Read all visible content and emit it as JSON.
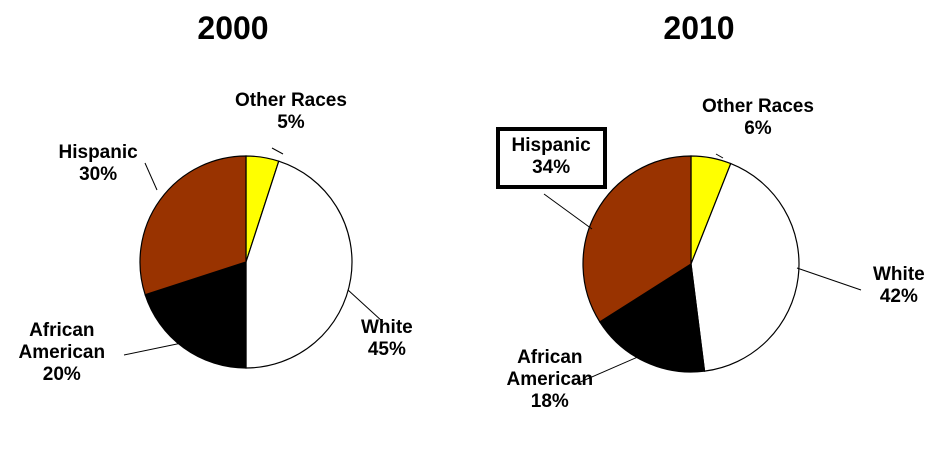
{
  "chart_data": [
    {
      "type": "pie",
      "title": "2000",
      "categories": [
        "Other Races",
        "White",
        "African American",
        "Hispanic"
      ],
      "values": [
        5,
        45,
        20,
        30
      ],
      "value_labels": [
        "5%",
        "45%",
        "20%",
        "30%"
      ],
      "colors": [
        "#ffff00",
        "#ffffff",
        "#000000",
        "#993300"
      ],
      "label_lines": {
        "Other Races": [
          "Other Races"
        ],
        "White": [
          "White"
        ],
        "African American": [
          "African",
          "American"
        ],
        "Hispanic": [
          "Hispanic"
        ]
      },
      "highlighted": []
    },
    {
      "type": "pie",
      "title": "2010",
      "categories": [
        "Other Races",
        "White",
        "African American",
        "Hispanic"
      ],
      "values": [
        6,
        42,
        18,
        34
      ],
      "value_labels": [
        "6%",
        "42%",
        "18%",
        "34%"
      ],
      "colors": [
        "#ffff00",
        "#ffffff",
        "#000000",
        "#993300"
      ],
      "label_lines": {
        "Other Races": [
          "Other Races"
        ],
        "White": [
          "White"
        ],
        "African American": [
          "African",
          "American"
        ],
        "Hispanic": [
          "Hispanic"
        ]
      },
      "highlighted": [
        "Hispanic"
      ]
    }
  ]
}
